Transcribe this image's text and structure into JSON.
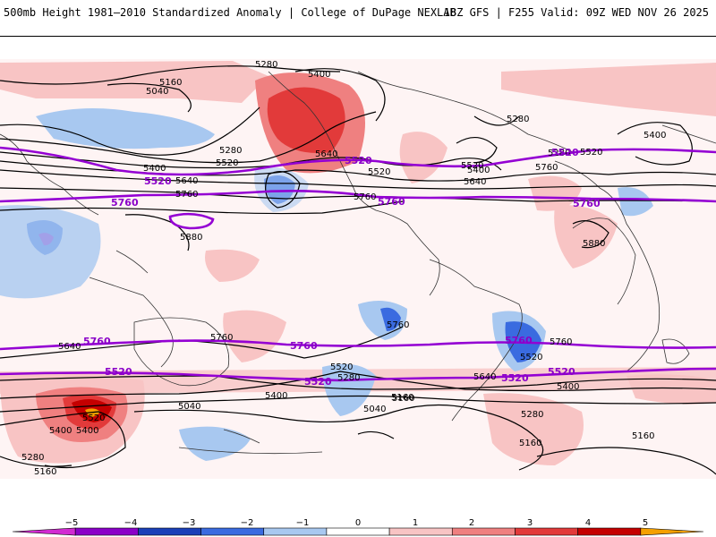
{
  "header": {
    "title": "500mb Height 1981–2010 Standardized Anomaly | College of DuPage NEXLAB",
    "valid": "18Z GFS | F255 Valid: 09Z WED NOV 26 2025"
  },
  "contour_labels": {
    "black": [
      "5280",
      "5400",
      "5160",
      "5040",
      "5280",
      "5520",
      "5400",
      "5640",
      "5760",
      "5880",
      "5400",
      "5520",
      "5640",
      "5760",
      "5280",
      "5400",
      "5520",
      "5760",
      "5880",
      "5640",
      "5760",
      "5760",
      "5640",
      "5520",
      "5400",
      "5160",
      "5040",
      "5400",
      "5520",
      "5280",
      "5040",
      "5160",
      "5760",
      "5640",
      "5520",
      "5400",
      "5280",
      "5160",
      "5400",
      "5280",
      "5160",
      "5520",
      "5160",
      "5280"
    ],
    "purple": [
      "5520",
      "5760",
      "5520",
      "5760",
      "5520",
      "5760",
      "5760",
      "5760",
      "5520",
      "5520",
      "5520",
      "5760",
      "5520"
    ]
  },
  "colorbar": {
    "ticks": [
      "−5",
      "−4",
      "−3",
      "−2",
      "−1",
      "0",
      "1",
      "2",
      "3",
      "4",
      "5"
    ],
    "colors": [
      "#d22ad2",
      "#8a00c8",
      "#1a3fb8",
      "#3a6be0",
      "#a8c8f0",
      "#ffffff",
      "#f8c4c4",
      "#ef8080",
      "#e23a3a",
      "#c40000",
      "#f5a000"
    ]
  }
}
